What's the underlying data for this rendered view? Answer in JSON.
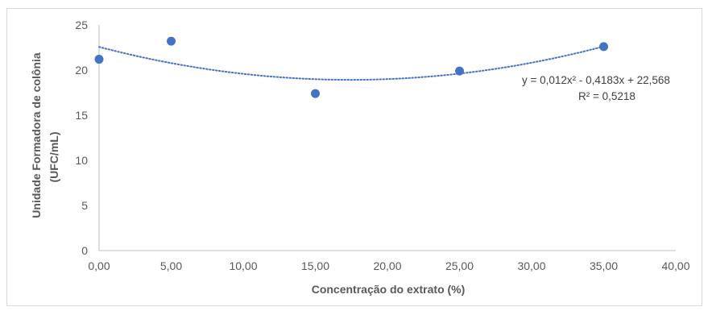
{
  "chart_data": {
    "type": "scatter",
    "title": "",
    "xlabel": "Concentração do extrato (%)",
    "ylabel_line1": "Unidade Formadora de colônia",
    "ylabel_line2": "(UFC/mL)",
    "xlim": [
      0,
      40
    ],
    "ylim": [
      0,
      25
    ],
    "x_ticks": [
      0,
      5,
      10,
      15,
      20,
      25,
      30,
      35,
      40
    ],
    "x_tick_labels": [
      "0,00",
      "5,00",
      "10,00",
      "15,00",
      "20,00",
      "25,00",
      "30,00",
      "35,00",
      "40,00"
    ],
    "y_ticks": [
      0,
      5,
      10,
      15,
      20,
      25
    ],
    "y_tick_labels": [
      "0",
      "5",
      "10",
      "15",
      "20",
      "25"
    ],
    "grid": false,
    "legend": false,
    "series": [
      {
        "x": [
          0,
          5,
          15,
          25,
          35
        ],
        "y": [
          21.2,
          23.2,
          17.4,
          19.9,
          22.6
        ],
        "color": "#4472c4"
      }
    ],
    "trendline": {
      "type": "polynomial",
      "order": 2,
      "coefficients": [
        0.012,
        -0.4183,
        22.568
      ],
      "x_range": [
        0,
        35
      ],
      "color": "#4472c4",
      "style": "dotted",
      "equation_label": "y = 0,012x² - 0,4183x + 22,568",
      "r2_label": "R² = 0,5218"
    }
  }
}
